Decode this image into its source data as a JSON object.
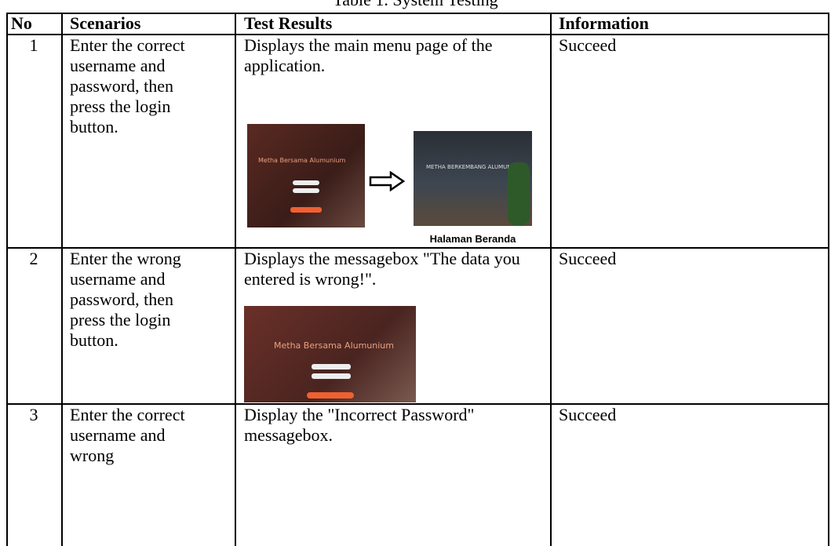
{
  "title": "Table 1. System Testing",
  "table": {
    "header": [
      "No",
      "Scenarios",
      "Test Results",
      "Information"
    ],
    "rows": [
      [
        "1",
        "Enter the correct username and password, then press the login button.",
        "Displays the main menu page of the application.",
        "Succeed"
      ],
      [
        "2",
        "Enter the wrong username and password, then press the login button.",
        "Displays the messagebox \"The data you entered is wrong!\".",
        "Succeed"
      ],
      [
        "3",
        "Enter the correct username and wrong",
        "Display the \"Incorrect Password\" messagebox.",
        "Succeed"
      ]
    ]
  },
  "screens": {
    "login_title": "Metha Bersama Alumunium",
    "home_title": "METHA BERKEMBANG ALUMUNIUM",
    "home_caption": "Halaman Beranda"
  }
}
